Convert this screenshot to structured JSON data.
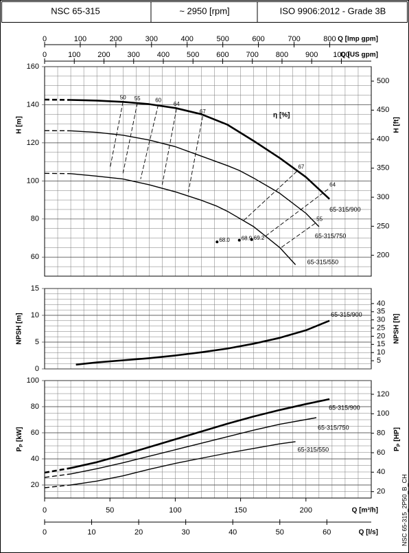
{
  "header": [
    "NSC 65-315",
    "~ 2950 [rpm]",
    "ISO 9906:2012 - Grade 3B"
  ],
  "footnote": "NSC 65-315_2P50_B_CH",
  "x_axes": [
    {
      "label": "Q [Imp gpm]",
      "xlim": [
        0,
        916.6
      ],
      "xticks": [
        0,
        100,
        200,
        300,
        400,
        500,
        600,
        700,
        800
      ]
    },
    {
      "label": "Q [US gpm]",
      "xlim": [
        0,
        1100.7
      ],
      "xticks": [
        0,
        100,
        200,
        300,
        400,
        500,
        600,
        700,
        800,
        900,
        1000
      ]
    },
    {
      "label": "Q [m³/h]",
      "xlim": [
        0,
        250
      ],
      "xticks": [
        0,
        50,
        100,
        150,
        200
      ],
      "minor_xstep": 10
    },
    {
      "label": "Q [l/s]",
      "xlim": [
        0,
        69.44
      ],
      "xticks": [
        0,
        10,
        20,
        30,
        40,
        50,
        60
      ]
    }
  ],
  "chart_data": [
    {
      "type": "line",
      "ylabel": "H [m]",
      "y2label": "H [ft]",
      "ylim": [
        50,
        160
      ],
      "yticks": [
        60,
        80,
        100,
        120,
        140,
        160
      ],
      "minor_ystep": 5,
      "y2lim": [
        164.04,
        524.93
      ],
      "y2ticks": [
        200,
        250,
        300,
        350,
        400,
        450,
        500
      ],
      "grid": true,
      "color": "#000000",
      "dashed_below": 20,
      "series": [
        {
          "name": "65-315/900",
          "x": [
            0,
            20,
            40,
            60,
            80,
            100,
            120,
            140,
            160,
            180,
            200,
            218
          ],
          "values": [
            142.7,
            142.5,
            142.2,
            141.5,
            140.3,
            138.3,
            135,
            129.5,
            121,
            112,
            102,
            90.5
          ]
        },
        {
          "name": "65-315/750",
          "x": [
            0,
            20,
            40,
            60,
            80,
            100,
            120,
            140,
            149,
            160,
            180,
            200,
            210
          ],
          "values": [
            126.4,
            126.3,
            125.5,
            124,
            121.5,
            118,
            113,
            108,
            105.5,
            101.5,
            93.5,
            83,
            76
          ]
        },
        {
          "name": "65-315/550",
          "x": [
            0,
            20,
            40,
            60,
            80,
            100,
            120,
            132,
            140,
            160,
            180,
            192
          ],
          "values": [
            104,
            103.8,
            102.5,
            101,
            98,
            94.3,
            89.8,
            86.7,
            84,
            76,
            65,
            56
          ]
        }
      ],
      "efficiency_label": "η [%]",
      "efficiency_lines": [
        {
          "name": "50",
          "x": [
            60,
            50
          ],
          "values": [
            141.5,
            106.5
          ]
        },
        {
          "name": "55",
          "x": [
            71,
            60
          ],
          "values": [
            141,
            104
          ]
        },
        {
          "name": "60",
          "x": [
            87,
            73.5
          ],
          "values": [
            140,
            101
          ]
        },
        {
          "name": "64",
          "x": [
            101,
            90
          ],
          "values": [
            138,
            98
          ]
        },
        {
          "name": "67",
          "x": [
            121,
            110
          ],
          "values": [
            134,
            94
          ]
        },
        {
          "name": "67",
          "x": [
            193,
            152
          ],
          "values": [
            105,
            79
          ]
        },
        {
          "name": "64",
          "x": [
            217,
            168
          ],
          "values": [
            95.7,
            70.5
          ]
        },
        {
          "name": "55",
          "x": [
            207,
            181
          ],
          "values": [
            77.7,
            65
          ]
        }
      ],
      "best_efficiency": {
        "x": [
          158.5,
          149,
          132
        ],
        "values": [
          69.2,
          68.9,
          68
        ],
        "value_labels": [
          "69.2",
          "68.9",
          "68.0"
        ]
      }
    },
    {
      "type": "line",
      "ylabel": "NPSH [m]",
      "y2label": "NPSH [ft]",
      "ylim": [
        0,
        15
      ],
      "yticks": [
        0,
        5,
        10,
        15
      ],
      "minor_ystep": 1,
      "y2lim": [
        0,
        49.21
      ],
      "y2ticks": [
        5,
        10,
        15,
        20,
        25,
        30,
        35,
        40
      ],
      "grid": true,
      "color": "#000000",
      "series": [
        {
          "name": "65-315/900",
          "x": [
            24,
            40,
            60,
            80,
            100,
            120,
            140,
            160,
            180,
            200,
            218
          ],
          "values": [
            0.8,
            1.2,
            1.6,
            2.0,
            2.5,
            3.1,
            3.8,
            4.7,
            5.8,
            7.2,
            9.0
          ]
        }
      ]
    },
    {
      "type": "line",
      "ylabel": {
        "symbol": "P",
        "subscript": "P",
        "unit": "[kW]"
      },
      "y2label": {
        "symbol": "P",
        "subscript": "P",
        "unit": "[HP]"
      },
      "ylim": [
        10,
        100
      ],
      "yticks": [
        20,
        40,
        60,
        80,
        100
      ],
      "minor_ystep": 5,
      "y2lim": [
        13.41,
        134.1
      ],
      "y2ticks": [
        20,
        40,
        60,
        80,
        100,
        120
      ],
      "grid": true,
      "color": "#000000",
      "dashed_below": 20,
      "series": [
        {
          "name": "65-315/900",
          "x": [
            0,
            20,
            40,
            60,
            80,
            100,
            120,
            140,
            160,
            180,
            200,
            218
          ],
          "values": [
            29.5,
            33,
            37.5,
            43,
            49,
            55,
            61,
            67,
            72.5,
            77.5,
            82,
            85.8
          ]
        },
        {
          "name": "65-315/750",
          "x": [
            0,
            20,
            40,
            60,
            80,
            100,
            120,
            140,
            160,
            180,
            208
          ],
          "values": [
            25.8,
            28.5,
            32.5,
            37,
            42,
            47,
            52,
            57,
            62,
            66.5,
            71.6
          ]
        },
        {
          "name": "65-315/550",
          "x": [
            0,
            20,
            40,
            60,
            80,
            100,
            120,
            140,
            160,
            180,
            192
          ],
          "values": [
            17.9,
            20,
            23,
            27,
            32,
            36.5,
            40.5,
            44.5,
            48,
            51.5,
            53.2
          ]
        }
      ]
    }
  ]
}
